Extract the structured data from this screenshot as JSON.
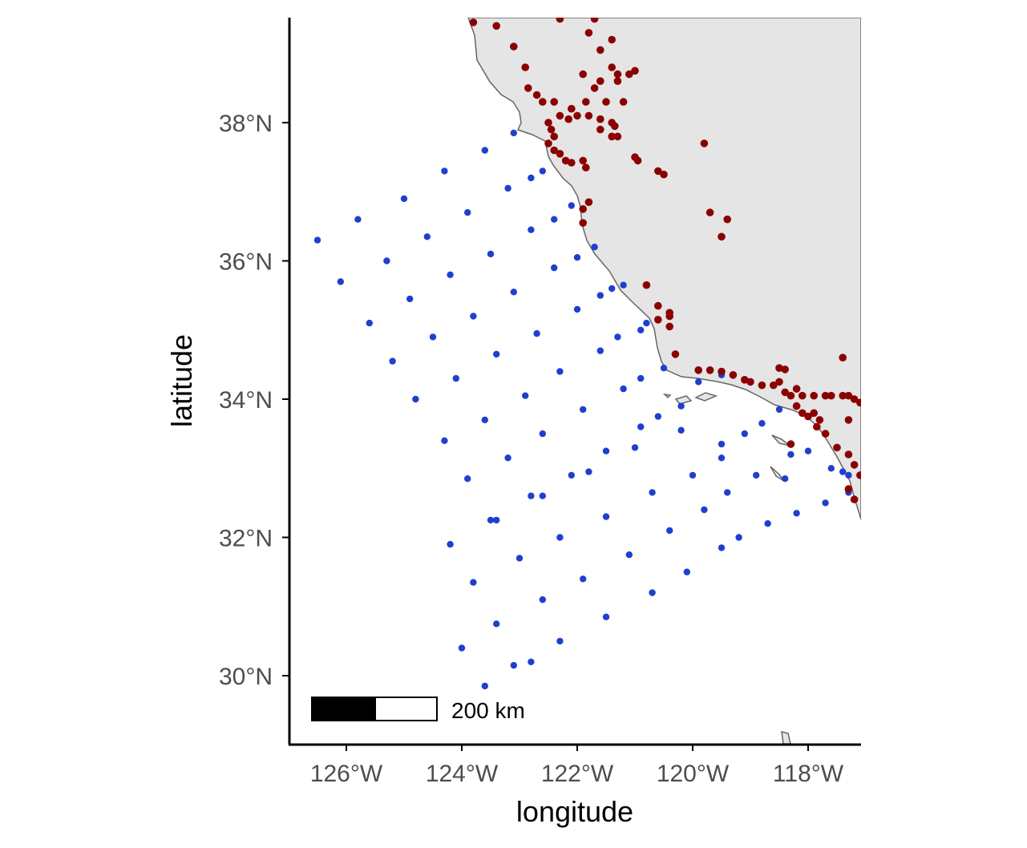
{
  "map": {
    "xlabel": "longitude",
    "ylabel": "latitude",
    "x_ticks": [
      {
        "value": -126,
        "label": "126°W"
      },
      {
        "value": -124,
        "label": "124°W"
      },
      {
        "value": -122,
        "label": "122°W"
      },
      {
        "value": -120,
        "label": "120°W"
      },
      {
        "value": -118,
        "label": "118°W"
      }
    ],
    "y_ticks": [
      {
        "value": 30,
        "label": "30°N"
      },
      {
        "value": 32,
        "label": "32°N"
      },
      {
        "value": 34,
        "label": "34°N"
      },
      {
        "value": 36,
        "label": "36°N"
      },
      {
        "value": 38,
        "label": "38°N"
      }
    ],
    "xlim": [
      -127.0,
      -117.0
    ],
    "ylim": [
      29.0,
      39.5
    ],
    "scale_bar": {
      "label": "200 km",
      "length_km": 200
    },
    "colors": {
      "land": "#e5e5e5",
      "coastline": "#666666",
      "ocean_points": "#1f3fd1",
      "land_points": "#8b0000",
      "axis": "#000000"
    }
  },
  "chart_data": {
    "type": "scatter",
    "xlabel": "longitude",
    "ylabel": "latitude",
    "xlim": [
      -127.0,
      -117.0
    ],
    "ylim": [
      29.0,
      39.5
    ],
    "series": [
      {
        "color": "#1f3fd1",
        "points": [
          [
            -126.5,
            36.3
          ],
          [
            -125.8,
            36.6
          ],
          [
            -125.0,
            36.9
          ],
          [
            -124.3,
            37.3
          ],
          [
            -123.6,
            37.6
          ],
          [
            -123.1,
            37.85
          ],
          [
            -126.1,
            35.7
          ],
          [
            -125.3,
            36.0
          ],
          [
            -124.6,
            36.35
          ],
          [
            -123.9,
            36.7
          ],
          [
            -123.2,
            37.05
          ],
          [
            -122.8,
            37.2
          ],
          [
            -122.6,
            37.3
          ],
          [
            -125.6,
            35.1
          ],
          [
            -124.9,
            35.45
          ],
          [
            -124.2,
            35.8
          ],
          [
            -123.5,
            36.1
          ],
          [
            -122.8,
            36.45
          ],
          [
            -122.4,
            36.6
          ],
          [
            -122.1,
            36.8
          ],
          [
            -125.2,
            34.55
          ],
          [
            -124.5,
            34.9
          ],
          [
            -123.8,
            35.2
          ],
          [
            -123.1,
            35.55
          ],
          [
            -122.4,
            35.9
          ],
          [
            -122.0,
            36.05
          ],
          [
            -121.7,
            36.2
          ],
          [
            -124.8,
            34.0
          ],
          [
            -124.1,
            34.3
          ],
          [
            -123.4,
            34.65
          ],
          [
            -122.7,
            34.95
          ],
          [
            -122.0,
            35.3
          ],
          [
            -121.6,
            35.5
          ],
          [
            -121.4,
            35.6
          ],
          [
            -121.2,
            35.65
          ],
          [
            -124.3,
            33.4
          ],
          [
            -123.6,
            33.7
          ],
          [
            -122.9,
            34.05
          ],
          [
            -122.3,
            34.4
          ],
          [
            -121.6,
            34.7
          ],
          [
            -121.3,
            34.9
          ],
          [
            -120.9,
            35.0
          ],
          [
            -120.8,
            35.1
          ],
          [
            -123.9,
            32.85
          ],
          [
            -123.2,
            33.15
          ],
          [
            -122.6,
            33.5
          ],
          [
            -121.9,
            33.85
          ],
          [
            -121.2,
            34.15
          ],
          [
            -120.9,
            34.3
          ],
          [
            -120.5,
            34.45
          ],
          [
            -123.5,
            32.25
          ],
          [
            -122.8,
            32.6
          ],
          [
            -122.1,
            32.9
          ],
          [
            -121.5,
            33.25
          ],
          [
            -120.9,
            33.6
          ],
          [
            -120.6,
            33.75
          ],
          [
            -120.2,
            33.9
          ],
          [
            -119.9,
            34.25
          ],
          [
            -119.5,
            34.35
          ],
          [
            -124.2,
            31.9
          ],
          [
            -123.4,
            32.25
          ],
          [
            -122.6,
            32.6
          ],
          [
            -121.8,
            32.95
          ],
          [
            -121.0,
            33.3
          ],
          [
            -120.2,
            33.55
          ],
          [
            -119.5,
            33.35
          ],
          [
            -119.1,
            33.5
          ],
          [
            -118.8,
            33.65
          ],
          [
            -118.5,
            33.85
          ],
          [
            -123.8,
            31.35
          ],
          [
            -123.0,
            31.7
          ],
          [
            -122.3,
            32.0
          ],
          [
            -121.5,
            32.3
          ],
          [
            -120.7,
            32.65
          ],
          [
            -120.0,
            32.9
          ],
          [
            -119.5,
            33.15
          ],
          [
            -118.9,
            32.9
          ],
          [
            -118.3,
            33.2
          ],
          [
            -118.0,
            33.25
          ],
          [
            -123.4,
            30.75
          ],
          [
            -122.6,
            31.1
          ],
          [
            -121.9,
            31.4
          ],
          [
            -121.1,
            31.75
          ],
          [
            -120.4,
            32.1
          ],
          [
            -119.8,
            32.4
          ],
          [
            -119.4,
            32.65
          ],
          [
            -118.4,
            32.85
          ],
          [
            -117.6,
            33.0
          ],
          [
            -117.4,
            32.95
          ],
          [
            -117.3,
            32.9
          ],
          [
            -124.0,
            30.4
          ],
          [
            -123.1,
            30.15
          ],
          [
            -122.3,
            30.5
          ],
          [
            -121.5,
            30.85
          ],
          [
            -120.7,
            31.2
          ],
          [
            -120.1,
            31.5
          ],
          [
            -119.5,
            31.85
          ],
          [
            -119.2,
            32.0
          ],
          [
            -118.7,
            32.2
          ],
          [
            -118.2,
            32.35
          ],
          [
            -117.7,
            32.5
          ],
          [
            -117.3,
            32.65
          ],
          [
            -123.6,
            29.85
          ],
          [
            -122.8,
            30.2
          ]
        ]
      },
      {
        "color": "#8b0000",
        "points": [
          [
            -123.8,
            39.45
          ],
          [
            -123.4,
            39.4
          ],
          [
            -122.3,
            39.5
          ],
          [
            -121.7,
            39.5
          ],
          [
            -121.8,
            39.3
          ],
          [
            -121.4,
            39.2
          ],
          [
            -121.6,
            39.05
          ],
          [
            -123.1,
            39.1
          ],
          [
            -122.9,
            38.8
          ],
          [
            -121.9,
            38.7
          ],
          [
            -121.4,
            38.8
          ],
          [
            -121.3,
            38.7
          ],
          [
            -121.1,
            38.7
          ],
          [
            -121.0,
            38.75
          ],
          [
            -121.6,
            38.6
          ],
          [
            -121.7,
            38.5
          ],
          [
            -121.3,
            38.6
          ],
          [
            -122.85,
            38.5
          ],
          [
            -122.7,
            38.4
          ],
          [
            -122.6,
            38.3
          ],
          [
            -122.4,
            38.3
          ],
          [
            -122.1,
            38.2
          ],
          [
            -121.85,
            38.3
          ],
          [
            -121.5,
            38.3
          ],
          [
            -121.2,
            38.3
          ],
          [
            -122.3,
            38.1
          ],
          [
            -122.15,
            38.05
          ],
          [
            -122.0,
            38.1
          ],
          [
            -121.8,
            38.1
          ],
          [
            -121.6,
            38.05
          ],
          [
            -121.4,
            38.0
          ],
          [
            -121.35,
            37.95
          ],
          [
            -121.3,
            37.8
          ],
          [
            -121.6,
            37.9
          ],
          [
            -121.4,
            37.8
          ],
          [
            -122.5,
            38.0
          ],
          [
            -122.45,
            37.9
          ],
          [
            -122.4,
            37.8
          ],
          [
            -122.5,
            37.7
          ],
          [
            -122.4,
            37.6
          ],
          [
            -122.3,
            37.55
          ],
          [
            -122.2,
            37.45
          ],
          [
            -122.1,
            37.42
          ],
          [
            -121.9,
            37.45
          ],
          [
            -121.85,
            37.35
          ],
          [
            -121.0,
            37.5
          ],
          [
            -120.95,
            37.45
          ],
          [
            -120.6,
            37.3
          ],
          [
            -120.5,
            37.25
          ],
          [
            -119.8,
            37.7
          ],
          [
            -119.7,
            36.7
          ],
          [
            -119.4,
            36.6
          ],
          [
            -119.5,
            36.35
          ],
          [
            -121.8,
            36.85
          ],
          [
            -121.9,
            36.75
          ],
          [
            -121.9,
            36.55
          ],
          [
            -120.8,
            35.65
          ],
          [
            -120.6,
            35.35
          ],
          [
            -120.4,
            35.25
          ],
          [
            -120.4,
            35.2
          ],
          [
            -120.6,
            35.15
          ],
          [
            -120.4,
            35.05
          ],
          [
            -120.3,
            34.65
          ],
          [
            -119.9,
            34.42
          ],
          [
            -119.7,
            34.42
          ],
          [
            -119.5,
            34.4
          ],
          [
            -119.3,
            34.35
          ],
          [
            -119.1,
            34.28
          ],
          [
            -119.0,
            34.25
          ],
          [
            -118.8,
            34.2
          ],
          [
            -118.6,
            34.2
          ],
          [
            -118.5,
            34.25
          ],
          [
            -118.4,
            34.1
          ],
          [
            -118.3,
            34.05
          ],
          [
            -118.5,
            34.45
          ],
          [
            -118.4,
            34.43
          ],
          [
            -118.2,
            34.15
          ],
          [
            -118.1,
            34.05
          ],
          [
            -117.9,
            34.05
          ],
          [
            -117.7,
            34.05
          ],
          [
            -117.6,
            34.05
          ],
          [
            -117.4,
            34.05
          ],
          [
            -117.3,
            34.05
          ],
          [
            -117.2,
            34.0
          ],
          [
            -117.1,
            33.95
          ],
          [
            -118.2,
            33.9
          ],
          [
            -118.1,
            33.8
          ],
          [
            -118.0,
            33.75
          ],
          [
            -117.8,
            33.7
          ],
          [
            -117.9,
            33.8
          ],
          [
            -117.85,
            33.6
          ],
          [
            -117.7,
            33.5
          ],
          [
            -117.5,
            33.3
          ],
          [
            -117.3,
            33.2
          ],
          [
            -117.2,
            33.05
          ],
          [
            -117.1,
            32.9
          ],
          [
            -117.3,
            32.7
          ],
          [
            -117.2,
            32.55
          ],
          [
            -117.0,
            32.8
          ],
          [
            -117.3,
            33.7
          ],
          [
            -117.4,
            34.6
          ],
          [
            -118.3,
            33.35
          ]
        ]
      }
    ]
  }
}
